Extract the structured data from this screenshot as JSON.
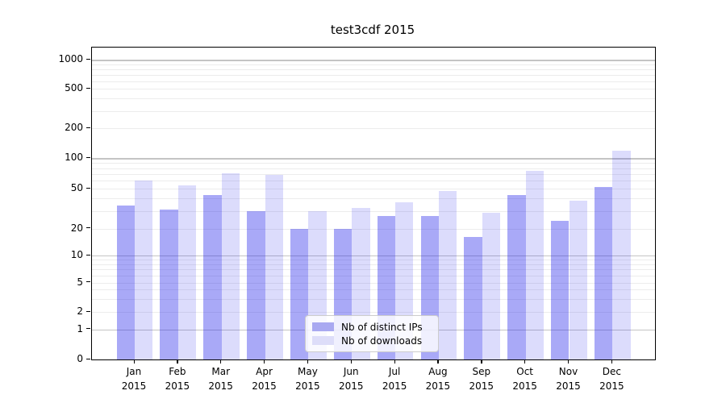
{
  "title": "test3cdf 2015",
  "legend": {
    "items": [
      {
        "label": "Nb of distinct IPs",
        "color": "#a9a9f1"
      },
      {
        "label": "Nb of downloads",
        "color": "#ddddf9"
      }
    ],
    "position": "lower center"
  },
  "colors": {
    "bar_distinct_ips": "#a9a9f1",
    "bar_downloads": "#ddddf9",
    "grid_major": "#c4c4c4",
    "grid_minor": "#ececec",
    "text": "#000000"
  },
  "chart_data": {
    "type": "bar",
    "title": "test3cdf 2015",
    "categories": [
      "Jan 2015",
      "Feb 2015",
      "Mar 2015",
      "Apr 2015",
      "May 2015",
      "Jun 2015",
      "Jul 2015",
      "Aug 2015",
      "Sep 2015",
      "Oct 2015",
      "Nov 2015",
      "Dec 2015"
    ],
    "series": [
      {
        "name": "Nb of distinct IPs",
        "values": [
          34,
          31,
          43,
          30,
          20,
          20,
          27,
          27,
          16,
          43,
          24,
          52
        ]
      },
      {
        "name": "Nb of downloads",
        "values": [
          60,
          54,
          71,
          68,
          30,
          32,
          37,
          48,
          29,
          75,
          38,
          120
        ]
      }
    ],
    "xlabel": "",
    "ylabel": "",
    "yscale": "symlog",
    "ylim": [
      0,
      1300
    ],
    "yticks": [
      1000,
      500,
      200,
      100,
      50,
      20,
      10,
      5,
      2,
      1,
      0
    ],
    "grid": true,
    "legend_position": "lower center"
  }
}
